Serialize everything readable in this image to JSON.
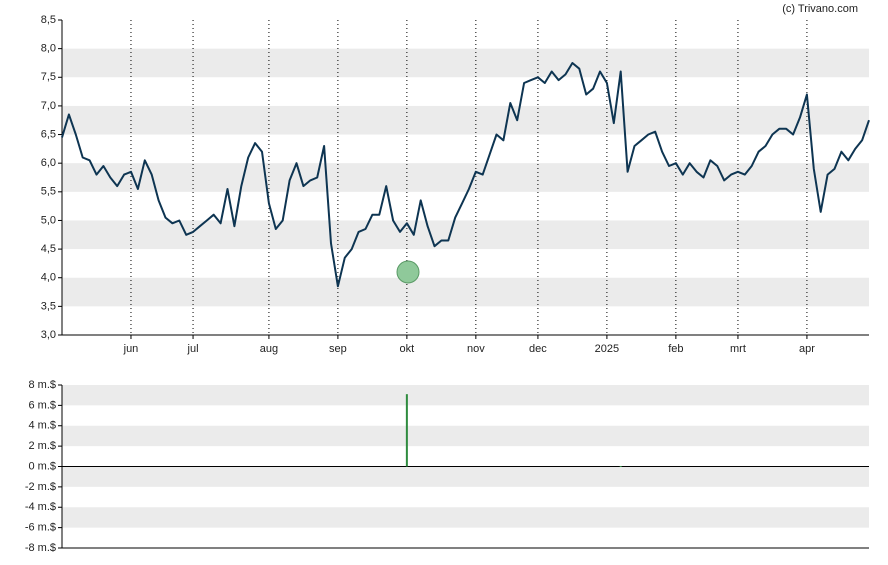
{
  "credit": "(c) Trivano.com",
  "chart_data": [
    {
      "type": "line",
      "categories": [
        null,
        null,
        null,
        null,
        null,
        null,
        null,
        null,
        null,
        null,
        "jun",
        null,
        null,
        null,
        null,
        null,
        null,
        null,
        null,
        "jul",
        null,
        null,
        null,
        null,
        null,
        null,
        null,
        null,
        null,
        null,
        "aug",
        null,
        null,
        null,
        null,
        null,
        null,
        null,
        null,
        null,
        "sep",
        null,
        null,
        null,
        null,
        null,
        null,
        null,
        null,
        null,
        "okt",
        null,
        null,
        null,
        null,
        null,
        null,
        null,
        null,
        null,
        "nov",
        null,
        null,
        null,
        null,
        null,
        null,
        null,
        null,
        "dec",
        null,
        null,
        null,
        null,
        null,
        null,
        null,
        null,
        null,
        "2025",
        null,
        null,
        null,
        null,
        null,
        null,
        null,
        null,
        null,
        "feb",
        null,
        null,
        null,
        null,
        null,
        null,
        null,
        null,
        "mrt",
        null,
        null,
        null,
        null,
        null,
        null,
        null,
        null,
        null,
        "apr",
        null,
        null,
        null,
        null,
        null,
        null,
        null,
        null,
        null
      ],
      "series": [
        {
          "color": "#0e3552",
          "values": [
            6.45,
            6.85,
            6.5,
            6.1,
            6.05,
            5.8,
            5.95,
            5.75,
            5.6,
            5.8,
            5.85,
            5.55,
            6.05,
            5.8,
            5.35,
            5.05,
            4.95,
            5.0,
            4.75,
            4.8,
            4.9,
            5.0,
            5.1,
            4.95,
            5.55,
            4.9,
            5.6,
            6.1,
            6.35,
            6.2,
            5.3,
            4.85,
            5.0,
            5.7,
            6.0,
            5.6,
            5.7,
            5.75,
            6.3,
            4.6,
            3.85,
            4.35,
            4.5,
            4.8,
            4.85,
            5.1,
            5.1,
            5.6,
            5.0,
            4.8,
            4.95,
            4.75,
            5.35,
            4.9,
            4.55,
            4.65,
            4.65,
            5.05,
            5.3,
            5.55,
            5.85,
            5.8,
            6.15,
            6.5,
            6.4,
            7.05,
            6.75,
            7.4,
            7.45,
            7.5,
            7.4,
            7.6,
            7.45,
            7.55,
            7.75,
            7.65,
            7.2,
            7.3,
            7.6,
            7.4,
            6.7,
            7.6,
            5.85,
            6.3,
            6.4,
            6.5,
            6.55,
            6.2,
            5.95,
            6.0,
            5.8,
            6.0,
            5.85,
            5.75,
            6.05,
            5.95,
            5.7,
            5.8,
            5.85,
            5.8,
            5.95,
            6.2,
            6.3,
            6.5,
            6.6,
            6.6,
            6.5,
            6.8,
            7.2,
            5.9,
            5.15,
            5.8,
            5.9,
            6.2,
            6.05,
            6.25,
            6.4,
            6.75
          ]
        }
      ],
      "ylim": [
        3.0,
        8.5
      ],
      "yticks": [
        {
          "value": 3.0,
          "label": "3,0"
        },
        {
          "value": 3.5,
          "label": "3,5"
        },
        {
          "value": 4.0,
          "label": "4,0"
        },
        {
          "value": 4.5,
          "label": "4,5"
        },
        {
          "value": 5.0,
          "label": "5,0"
        },
        {
          "value": 5.5,
          "label": "5,5"
        },
        {
          "value": 6.0,
          "label": "6,0"
        },
        {
          "value": 6.5,
          "label": "6,5"
        },
        {
          "value": 7.0,
          "label": "7,0"
        },
        {
          "value": 7.5,
          "label": "7,5"
        },
        {
          "value": 8.0,
          "label": "8,0"
        },
        {
          "value": 8.5,
          "label": "8,5"
        }
      ],
      "bands": true,
      "vgrid": true
    },
    {
      "type": "bar",
      "series": [
        {
          "color": "#2e8b3e",
          "values": [
            null,
            null,
            null,
            null,
            null,
            null,
            null,
            null,
            null,
            null,
            null,
            null,
            null,
            null,
            null,
            null,
            null,
            null,
            null,
            null,
            null,
            null,
            null,
            null,
            null,
            null,
            null,
            null,
            null,
            null,
            null,
            null,
            null,
            null,
            null,
            null,
            null,
            null,
            null,
            null,
            null,
            null,
            null,
            null,
            null,
            null,
            null,
            null,
            null,
            null,
            7.1,
            null,
            null,
            null,
            null,
            null,
            null,
            null,
            null,
            null,
            null,
            null,
            null,
            null,
            null,
            null,
            null,
            null,
            null,
            null,
            null,
            null,
            null,
            null,
            null,
            null,
            null,
            null,
            null,
            null,
            null,
            0.05,
            null,
            null,
            null,
            null,
            null,
            null,
            null,
            null,
            null,
            null,
            null,
            null,
            null,
            null,
            null,
            null,
            null,
            null,
            null,
            null,
            null,
            null,
            null,
            null,
            null,
            null,
            null,
            null,
            null,
            null,
            null,
            null,
            null,
            null,
            null,
            null
          ]
        }
      ],
      "ylim": [
        -8,
        8
      ],
      "yticks": [
        {
          "value": -8,
          "label": "-8 m.$"
        },
        {
          "value": -6,
          "label": "-6 m.$"
        },
        {
          "value": -4,
          "label": "-4 m.$"
        },
        {
          "value": -2,
          "label": "-2 m.$"
        },
        {
          "value": 0,
          "label": "0 m.$"
        },
        {
          "value": 2,
          "label": "2 m.$"
        },
        {
          "value": 4,
          "label": "4 m.$"
        },
        {
          "value": 6,
          "label": "6 m.$"
        },
        {
          "value": 8,
          "label": "8 m.$"
        }
      ],
      "bands": true
    }
  ]
}
